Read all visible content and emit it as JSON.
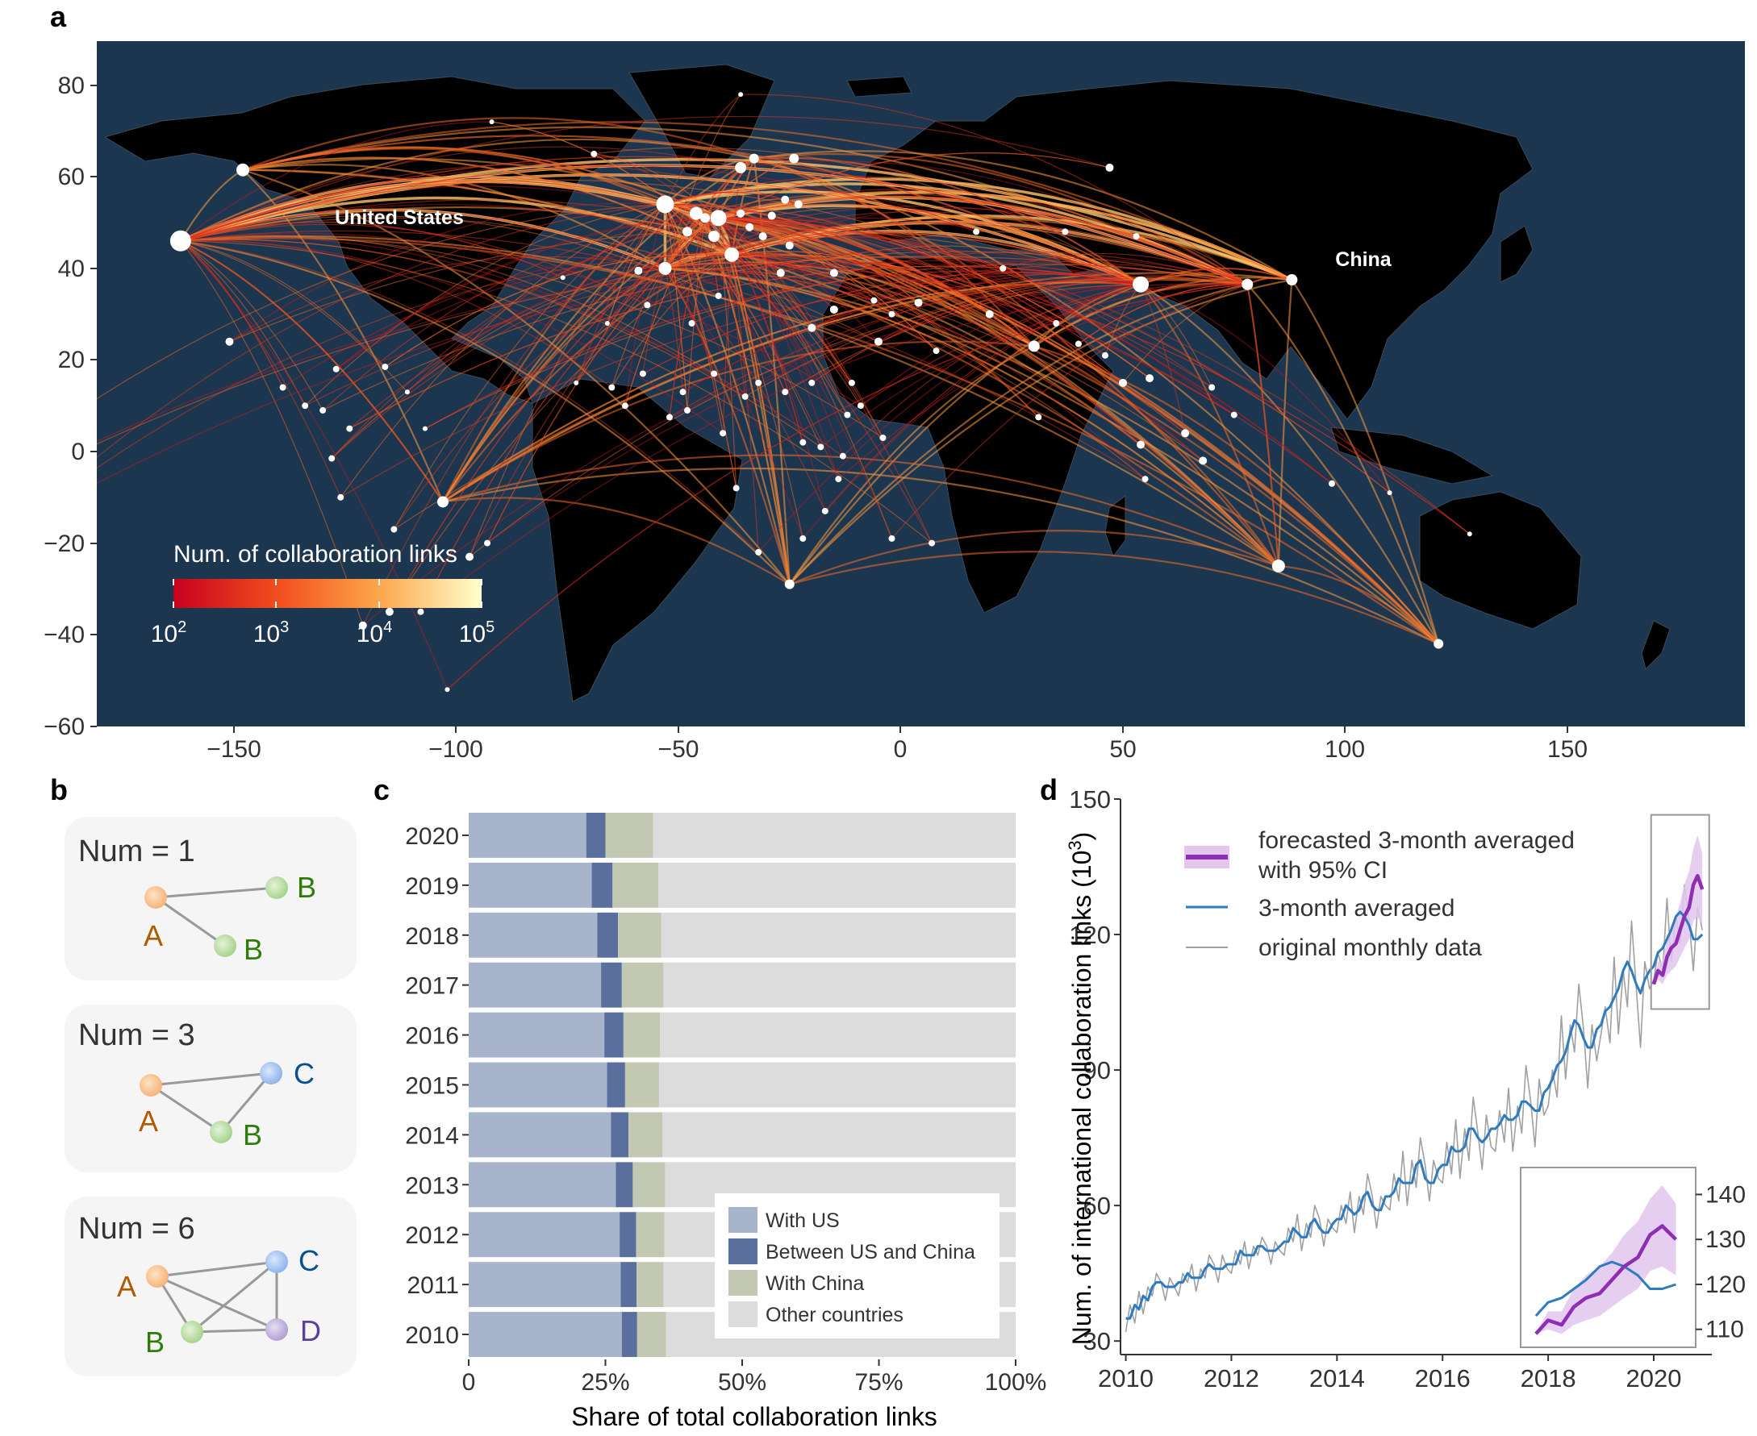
{
  "panels": {
    "a": "a",
    "b": "b",
    "c": "c",
    "d": "d"
  },
  "colors": {
    "ocean": "#1d3650",
    "land": "#000000",
    "with_us": "#a8b4cc",
    "between_us_china": "#5b6f9e",
    "with_china": "#c3c8b2",
    "other": "#dcdcdc",
    "forecast": "#8e2fb3",
    "forecast_ci": "#e2c6ee",
    "averaged": "#2e7bbf",
    "monthly": "#a0a0a0"
  },
  "map": {
    "legend_title": "Num. of collaboration links",
    "legend_ticks": [
      {
        "base": "10",
        "exp": "2"
      },
      {
        "base": "10",
        "exp": "3"
      },
      {
        "base": "10",
        "exp": "4"
      },
      {
        "base": "10",
        "exp": "5"
      }
    ],
    "x_ticks": [
      "−150",
      "−100",
      "−50",
      "0",
      "50",
      "100",
      "150"
    ],
    "y_ticks": [
      "80",
      "60",
      "40",
      "20",
      "0",
      "−20",
      "−40",
      "−60"
    ],
    "labels": {
      "us": "United States",
      "china": "China"
    }
  },
  "panel_b": {
    "boxes": [
      {
        "title": "Num = 1",
        "nodes": {
          "a": "A",
          "b1": "B",
          "b2": "B"
        }
      },
      {
        "title": "Num = 3",
        "nodes": {
          "a": "A",
          "b": "B",
          "c": "C"
        }
      },
      {
        "title": "Num = 6",
        "nodes": {
          "a": "A",
          "b": "B",
          "c": "C",
          "d": "D"
        }
      }
    ]
  },
  "chart_data": [
    {
      "type": "bar",
      "stacked": true,
      "orientation": "horizontal",
      "categories": [
        "2020",
        "2019",
        "2018",
        "2017",
        "2016",
        "2015",
        "2014",
        "2013",
        "2012",
        "2011",
        "2010"
      ],
      "series": [
        {
          "name": "With US",
          "values": [
            21.5,
            22.5,
            23.5,
            24.2,
            24.8,
            25.3,
            26.0,
            26.9,
            27.6,
            27.8,
            28.0
          ]
        },
        {
          "name": "Between US and China",
          "values": [
            3.5,
            3.8,
            3.8,
            3.8,
            3.5,
            3.3,
            3.2,
            3.1,
            3.0,
            2.9,
            2.8
          ]
        },
        {
          "name": "With China",
          "values": [
            8.7,
            8.4,
            7.9,
            7.6,
            6.7,
            6.2,
            6.2,
            5.9,
            5.2,
            4.9,
            5.3
          ]
        },
        {
          "name": "Other countries",
          "values": [
            66.3,
            65.3,
            64.8,
            64.4,
            65.0,
            65.2,
            64.6,
            64.1,
            64.2,
            64.4,
            63.9
          ]
        }
      ],
      "xlabel": "Share of total collaboration links",
      "x_ticks": [
        "0",
        "25%",
        "50%",
        "75%",
        "100%"
      ],
      "xlim": [
        0,
        100
      ],
      "legend_position": "bottom-right"
    },
    {
      "type": "line",
      "ylabel": "Num. of international collaboration links (10",
      "ylabel_exp": "3",
      "ylabel_close": ")",
      "ylim": [
        27,
        150
      ],
      "xlim": [
        2009.9,
        2021.1
      ],
      "x_ticks": [
        "2010",
        "2012",
        "2014",
        "2016",
        "2018",
        "2020"
      ],
      "y_ticks": [
        "150",
        "120",
        "90",
        "60",
        "30"
      ],
      "legend_position": "top-left",
      "legend": {
        "forecast_line1": "forecasted 3-month averaged",
        "forecast_line2": "with 95% CI",
        "averaged": "3-month averaged",
        "monthly": "original monthly data"
      },
      "series": [
        {
          "name": "original monthly data",
          "x": [
            2010.0,
            2010.08,
            2010.17,
            2010.25,
            2010.33,
            2010.42,
            2010.5,
            2010.58,
            2010.67,
            2010.75,
            2010.83,
            2010.92,
            2011.0,
            2011.08,
            2011.17,
            2011.25,
            2011.33,
            2011.42,
            2011.5,
            2011.58,
            2011.67,
            2011.75,
            2011.83,
            2011.92,
            2012.0,
            2012.08,
            2012.17,
            2012.25,
            2012.33,
            2012.42,
            2012.5,
            2012.58,
            2012.67,
            2012.75,
            2012.83,
            2012.92,
            2013.0,
            2013.08,
            2013.17,
            2013.25,
            2013.33,
            2013.42,
            2013.5,
            2013.58,
            2013.67,
            2013.75,
            2013.83,
            2013.92,
            2014.0,
            2014.08,
            2014.17,
            2014.25,
            2014.33,
            2014.42,
            2014.5,
            2014.58,
            2014.67,
            2014.75,
            2014.83,
            2014.92,
            2015.0,
            2015.08,
            2015.17,
            2015.25,
            2015.33,
            2015.42,
            2015.5,
            2015.58,
            2015.67,
            2015.75,
            2015.83,
            2015.92,
            2016.0,
            2016.08,
            2016.17,
            2016.25,
            2016.33,
            2016.42,
            2016.5,
            2016.58,
            2016.67,
            2016.75,
            2016.83,
            2016.92,
            2017.0,
            2017.08,
            2017.17,
            2017.25,
            2017.33,
            2017.42,
            2017.5,
            2017.58,
            2017.67,
            2017.75,
            2017.83,
            2017.92,
            2018.0,
            2018.08,
            2018.17,
            2018.25,
            2018.33,
            2018.42,
            2018.5,
            2018.58,
            2018.67,
            2018.75,
            2018.83,
            2018.92,
            2019.0,
            2019.08,
            2019.17,
            2019.25,
            2019.33,
            2019.42,
            2019.5,
            2019.58,
            2019.67,
            2019.75,
            2019.83,
            2019.92,
            2020.0,
            2020.08,
            2020.17,
            2020.25,
            2020.33,
            2020.42,
            2020.5,
            2020.58,
            2020.67,
            2020.75,
            2020.83,
            2020.92
          ],
          "values": [
            32,
            38,
            34,
            41,
            36,
            42,
            40,
            45,
            43,
            39,
            44,
            42,
            40,
            45,
            43,
            47,
            41,
            46,
            44,
            49,
            47,
            43,
            49,
            46,
            45,
            50,
            47,
            52,
            46,
            51,
            49,
            53,
            51,
            47,
            52,
            50,
            49,
            55,
            52,
            58,
            50,
            56,
            53,
            60,
            57,
            51,
            57,
            55,
            54,
            60,
            56,
            63,
            54,
            62,
            58,
            67,
            62,
            55,
            62,
            60,
            59,
            67,
            61,
            72,
            60,
            70,
            64,
            75,
            69,
            61,
            70,
            66,
            65,
            74,
            67,
            79,
            66,
            77,
            70,
            84,
            76,
            68,
            80,
            73,
            72,
            81,
            74,
            86,
            72,
            82,
            76,
            91,
            83,
            73,
            88,
            80,
            82,
            90,
            84,
            102,
            88,
            100,
            94,
            109,
            99,
            86,
            100,
            92,
            98,
            104,
            96,
            115,
            98,
            112,
            104,
            123,
            108,
            95,
            114,
            108,
            110,
            116,
            112,
            128,
            114,
            124,
            118,
            131,
            123,
            112,
            126,
            121
          ]
        },
        {
          "name": "3-month averaged",
          "x": [
            2010.0,
            2010.08,
            2010.17,
            2010.25,
            2010.33,
            2010.42,
            2010.5,
            2010.58,
            2010.67,
            2010.75,
            2010.83,
            2010.92,
            2011.0,
            2011.08,
            2011.17,
            2011.25,
            2011.33,
            2011.42,
            2011.5,
            2011.58,
            2011.67,
            2011.75,
            2011.83,
            2011.92,
            2012.0,
            2012.08,
            2012.17,
            2012.25,
            2012.33,
            2012.42,
            2012.5,
            2012.58,
            2012.67,
            2012.75,
            2012.83,
            2012.92,
            2013.0,
            2013.08,
            2013.17,
            2013.25,
            2013.33,
            2013.42,
            2013.5,
            2013.58,
            2013.67,
            2013.75,
            2013.83,
            2013.92,
            2014.0,
            2014.08,
            2014.17,
            2014.25,
            2014.33,
            2014.42,
            2014.5,
            2014.58,
            2014.67,
            2014.75,
            2014.83,
            2014.92,
            2015.0,
            2015.08,
            2015.17,
            2015.25,
            2015.33,
            2015.42,
            2015.5,
            2015.58,
            2015.67,
            2015.75,
            2015.83,
            2015.92,
            2016.0,
            2016.08,
            2016.17,
            2016.25,
            2016.33,
            2016.42,
            2016.5,
            2016.58,
            2016.67,
            2016.75,
            2016.83,
            2016.92,
            2017.0,
            2017.08,
            2017.17,
            2017.25,
            2017.33,
            2017.42,
            2017.5,
            2017.58,
            2017.67,
            2017.75,
            2017.83,
            2017.92,
            2018.0,
            2018.08,
            2018.17,
            2018.25,
            2018.33,
            2018.42,
            2018.5,
            2018.58,
            2018.67,
            2018.75,
            2018.83,
            2018.92,
            2019.0,
            2019.08,
            2019.17,
            2019.25,
            2019.33,
            2019.42,
            2019.5,
            2019.58,
            2019.67,
            2019.75,
            2019.83,
            2019.92,
            2020.0,
            2020.08,
            2020.17,
            2020.25,
            2020.33,
            2020.42,
            2020.5,
            2020.58,
            2020.67,
            2020.75,
            2020.83,
            2020.92
          ],
          "values": [
            35,
            35,
            38,
            37,
            40,
            39,
            42,
            43,
            43,
            42,
            42,
            42,
            43,
            43,
            45,
            44,
            44,
            44,
            46,
            47,
            46,
            46,
            46,
            47,
            47,
            47,
            50,
            49,
            49,
            49,
            51,
            51,
            50,
            50,
            50,
            51,
            52,
            52,
            55,
            54,
            53,
            53,
            56,
            57,
            55,
            54,
            54,
            56,
            57,
            57,
            60,
            59,
            58,
            59,
            62,
            63,
            60,
            59,
            59,
            62,
            62,
            63,
            66,
            65,
            65,
            65,
            69,
            70,
            66,
            65,
            65,
            68,
            69,
            69,
            73,
            72,
            72,
            73,
            77,
            77,
            75,
            74,
            75,
            77,
            77,
            78,
            80,
            79,
            79,
            80,
            83,
            83,
            82,
            81,
            81,
            85,
            86,
            88,
            91,
            92,
            94,
            98,
            101,
            100,
            97,
            95,
            95,
            99,
            100,
            103,
            104,
            106,
            108,
            112,
            114,
            112,
            109,
            107,
            110,
            112,
            113,
            116,
            117,
            119,
            121,
            124,
            125,
            124,
            122,
            119,
            119,
            120
          ]
        },
        {
          "name": "forecasted 3-month averaged with 95% CI",
          "x": [
            2020.0,
            2020.08,
            2020.17,
            2020.25,
            2020.33,
            2020.42,
            2020.5,
            2020.58,
            2020.67,
            2020.75,
            2020.83,
            2020.92
          ],
          "values": [
            109,
            112,
            111,
            115,
            117,
            118,
            121,
            124,
            126,
            131,
            133,
            130
          ],
          "ci_lower": [
            109,
            110,
            109,
            111,
            112,
            113,
            115,
            117,
            119,
            123,
            124,
            122
          ],
          "ci_upper": [
            109,
            114,
            114,
            119,
            122,
            124,
            127,
            131,
            134,
            139,
            142,
            138
          ]
        }
      ],
      "inset": {
        "y_ticks": [
          "140",
          "130",
          "120",
          "110"
        ],
        "ylim": [
          106,
          146
        ]
      }
    }
  ]
}
